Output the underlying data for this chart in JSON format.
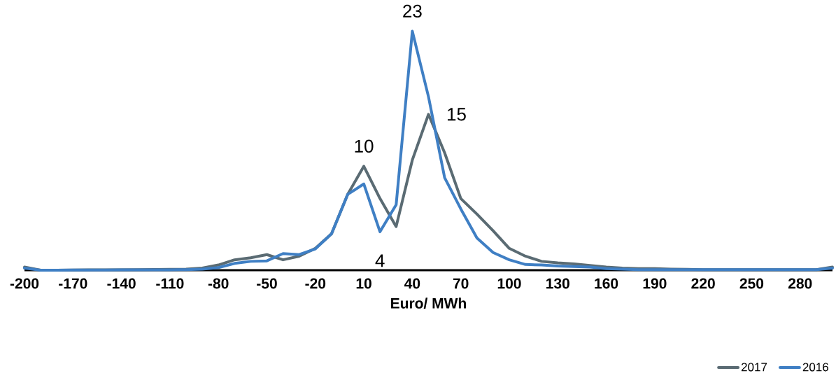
{
  "chart_data": {
    "type": "line",
    "xlabel": "Euro/ MWh",
    "x": [
      -200,
      -190,
      -180,
      -170,
      -160,
      -150,
      -140,
      -130,
      -120,
      -110,
      -100,
      -90,
      -80,
      -70,
      -60,
      -50,
      -40,
      -30,
      -20,
      -10,
      0,
      10,
      20,
      30,
      40,
      50,
      60,
      70,
      80,
      90,
      100,
      110,
      120,
      130,
      140,
      150,
      160,
      170,
      180,
      190,
      200,
      210,
      220,
      230,
      240,
      250,
      260,
      270,
      280,
      290,
      300
    ],
    "xlim": [
      -200,
      300
    ],
    "xticks": [
      -200,
      -170,
      -140,
      -110,
      -80,
      -50,
      -20,
      10,
      40,
      70,
      100,
      130,
      160,
      190,
      220,
      250,
      280
    ],
    "tick_labels": "x",
    "legend": "bottom right",
    "series": [
      {
        "name": "2017",
        "color": "#5a6b73",
        "values": [
          0.3,
          0,
          0,
          0.02,
          0.03,
          0.03,
          0.04,
          0.05,
          0.06,
          0.08,
          0.1,
          0.2,
          0.5,
          1.0,
          1.2,
          1.5,
          1.0,
          1.35,
          2.1,
          3.5,
          7.3,
          10,
          6.9,
          4.2,
          10.6,
          15,
          11.3,
          6.9,
          5.4,
          3.8,
          2.1,
          1.35,
          0.85,
          0.7,
          0.6,
          0.45,
          0.3,
          0.2,
          0.15,
          0.15,
          0.1,
          0.08,
          0.05,
          0.05,
          0.05,
          0.05,
          0.05,
          0.05,
          0.05,
          0.05,
          0.3
        ],
        "value_labels": [
          null,
          null,
          null,
          null,
          null,
          null,
          null,
          null,
          null,
          null,
          null,
          null,
          null,
          null,
          null,
          null,
          null,
          null,
          null,
          null,
          null,
          "10",
          null,
          null,
          null,
          "15",
          null,
          null,
          null,
          null,
          null,
          null,
          null,
          null,
          null,
          null,
          null,
          null,
          null,
          null,
          null,
          null,
          null,
          null,
          null,
          null,
          null,
          null,
          null,
          null,
          null
        ]
      },
      {
        "name": "2016",
        "color": "#3f7fc4",
        "values": [
          0.2,
          0,
          0,
          0.02,
          0.02,
          0.02,
          0.03,
          0.03,
          0.04,
          0.04,
          0.05,
          0.1,
          0.25,
          0.65,
          0.85,
          0.9,
          1.6,
          1.5,
          2.05,
          3.5,
          7.3,
          8.3,
          3.7,
          6.3,
          23,
          16.7,
          8.9,
          5.9,
          3.1,
          1.7,
          1.0,
          0.55,
          0.5,
          0.4,
          0.35,
          0.3,
          0.15,
          0.1,
          0.05,
          0.05,
          0.05,
          0.05,
          0.05,
          0.05,
          0.05,
          0.05,
          0.05,
          0.05,
          0.05,
          0.05,
          0.2
        ],
        "value_labels": [
          null,
          null,
          null,
          null,
          null,
          null,
          null,
          null,
          null,
          null,
          null,
          null,
          null,
          null,
          null,
          null,
          null,
          null,
          null,
          null,
          null,
          null,
          null,
          null,
          "23",
          null,
          null,
          null,
          null,
          null,
          null,
          null,
          null,
          null,
          null,
          null,
          null,
          null,
          null,
          null,
          null,
          null,
          null,
          null,
          null,
          null,
          null,
          null,
          null,
          null,
          null
        ]
      }
    ],
    "annotations": [
      "4"
    ]
  }
}
